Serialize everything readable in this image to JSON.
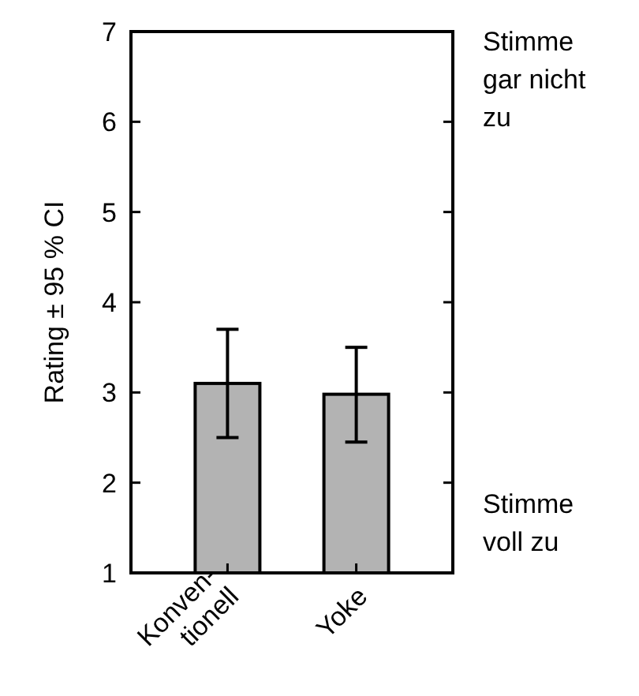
{
  "chart_data": {
    "type": "bar",
    "ylabel": "Rating ± 95 % CI",
    "categories": [
      "Konven-\ntionell",
      "Yoke"
    ],
    "values": [
      3.1,
      2.98
    ],
    "color": "#b3b3b3",
    "errors": [
      [
        2.5,
        3.7
      ],
      [
        2.45,
        3.5
      ]
    ],
    "ylim": [
      1,
      7
    ],
    "yticks": [
      1,
      2,
      3,
      4,
      5,
      6,
      7
    ],
    "grid": false,
    "annotations": [
      "Stimme\ngar nicht\nzu",
      "Stimme\nvoll zu"
    ]
  }
}
